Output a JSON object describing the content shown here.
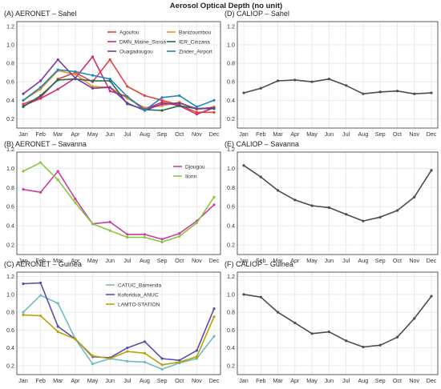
{
  "figure_title": "Aerosol Optical Depth (no unit)",
  "months": [
    "Jan",
    "Feb",
    "Mar",
    "Apr",
    "May",
    "Jun",
    "Jul",
    "Aug",
    "Sep",
    "Oct",
    "Nov",
    "Dec"
  ],
  "yticks": [
    "0.2",
    "0.4",
    "0.6",
    "0.8",
    "1.0",
    "1.2"
  ],
  "chart_data": [
    {
      "type": "line",
      "title": "(A) AERONET – Sahel",
      "xlabel": "",
      "ylabel": "",
      "ylim": [
        0.1,
        1.25
      ],
      "grid": true,
      "legend": "top-right, two columns",
      "series": [
        {
          "name": "Agoufou",
          "color": "#e8413f",
          "values": [
            0.36,
            0.43,
            0.63,
            0.7,
            0.6,
            0.84,
            0.55,
            0.45,
            0.4,
            0.35,
            0.27,
            0.27
          ]
        },
        {
          "name": "Banizoumbou",
          "color": "#e8961a",
          "values": [
            0.4,
            0.52,
            0.72,
            0.68,
            0.55,
            0.54,
            0.42,
            0.32,
            0.34,
            0.38,
            0.3,
            0.33
          ]
        },
        {
          "name": "DMN_Maine_Soroa",
          "color": "#d52a75",
          "values": [
            0.34,
            0.42,
            0.52,
            0.64,
            0.87,
            0.5,
            0.44,
            0.3,
            0.38,
            0.34,
            0.25,
            0.32
          ]
        },
        {
          "name": "IER_Cinzana",
          "color": "#1d6a5a",
          "values": [
            0.33,
            0.45,
            0.62,
            0.63,
            0.61,
            0.61,
            0.36,
            0.3,
            0.29,
            0.34,
            0.31,
            0.31
          ]
        },
        {
          "name": "Ouagadougou",
          "color": "#7b3aa0",
          "values": [
            0.47,
            0.61,
            0.84,
            0.64,
            0.53,
            0.54,
            0.37,
            0.29,
            0.36,
            0.37,
            0.31,
            0.32
          ]
        },
        {
          "name": "Zinder_Airport",
          "color": "#1f86b9",
          "values": [
            0.4,
            0.54,
            0.73,
            0.71,
            0.67,
            0.63,
            0.44,
            0.29,
            0.43,
            0.45,
            0.33,
            0.4
          ]
        }
      ]
    },
    {
      "type": "line",
      "title": "(D) CALIOP – Sahel",
      "xlabel": "",
      "ylabel": "",
      "ylim": [
        0.1,
        1.25
      ],
      "grid": true,
      "series": [
        {
          "color": "#4d4d4d",
          "values": [
            0.48,
            0.53,
            0.61,
            0.62,
            0.6,
            0.63,
            0.56,
            0.47,
            0.49,
            0.5,
            0.47,
            0.48
          ]
        }
      ]
    },
    {
      "type": "line",
      "title": "(B) AERONET – Savanna",
      "xlabel": "",
      "ylabel": "",
      "ylim": [
        0.1,
        1.17
      ],
      "grid": true,
      "legend": "top-right",
      "series": [
        {
          "name": "Djougou",
          "color": "#cc3d9e",
          "values": [
            0.78,
            0.75,
            0.97,
            0.68,
            0.42,
            0.44,
            0.31,
            0.31,
            0.26,
            0.32,
            0.45,
            0.62
          ]
        },
        {
          "name": "Ilorin",
          "color": "#8cc63f",
          "values": [
            0.97,
            1.06,
            0.88,
            0.64,
            0.42,
            0.35,
            0.28,
            0.28,
            0.23,
            0.29,
            0.43,
            0.7
          ]
        }
      ]
    },
    {
      "type": "line",
      "title": "(E) CALIOP – Savanna",
      "xlabel": "",
      "ylabel": "",
      "ylim": [
        0.1,
        1.17
      ],
      "grid": true,
      "series": [
        {
          "color": "#4d4d4d",
          "values": [
            1.03,
            0.91,
            0.77,
            0.67,
            0.61,
            0.59,
            0.52,
            0.45,
            0.49,
            0.56,
            0.7,
            0.98
          ]
        }
      ]
    },
    {
      "type": "line",
      "title": "(C) AERONET – Guinea",
      "xlabel": "",
      "ylabel": "",
      "ylim": [
        0.1,
        1.25
      ],
      "grid": true,
      "legend": "top-center",
      "series": [
        {
          "name": "CATUC_Bamenda",
          "color": "#6fbcc0",
          "values": [
            0.8,
            0.99,
            0.9,
            0.5,
            0.22,
            0.28,
            0.25,
            0.24,
            0.16,
            0.23,
            0.28,
            0.53
          ]
        },
        {
          "name": "Koforidua_ANUC",
          "color": "#5b4ea8",
          "values": [
            1.12,
            1.13,
            0.64,
            0.5,
            0.3,
            0.29,
            0.4,
            0.47,
            0.28,
            0.26,
            0.37,
            0.84
          ]
        },
        {
          "name": "LAMTO-STATION",
          "color": "#b8a10a",
          "values": [
            0.77,
            0.76,
            0.58,
            0.5,
            0.31,
            0.28,
            0.36,
            0.34,
            0.21,
            0.24,
            0.3,
            0.75
          ]
        }
      ]
    },
    {
      "type": "line",
      "title": "(F) CALIOP – Guinea",
      "xlabel": "",
      "ylabel": "",
      "ylim": [
        0.1,
        1.25
      ],
      "grid": true,
      "series": [
        {
          "color": "#4d4d4d",
          "values": [
            1.0,
            0.97,
            0.8,
            0.68,
            0.56,
            0.58,
            0.48,
            0.41,
            0.43,
            0.52,
            0.73,
            0.98
          ]
        }
      ]
    }
  ]
}
